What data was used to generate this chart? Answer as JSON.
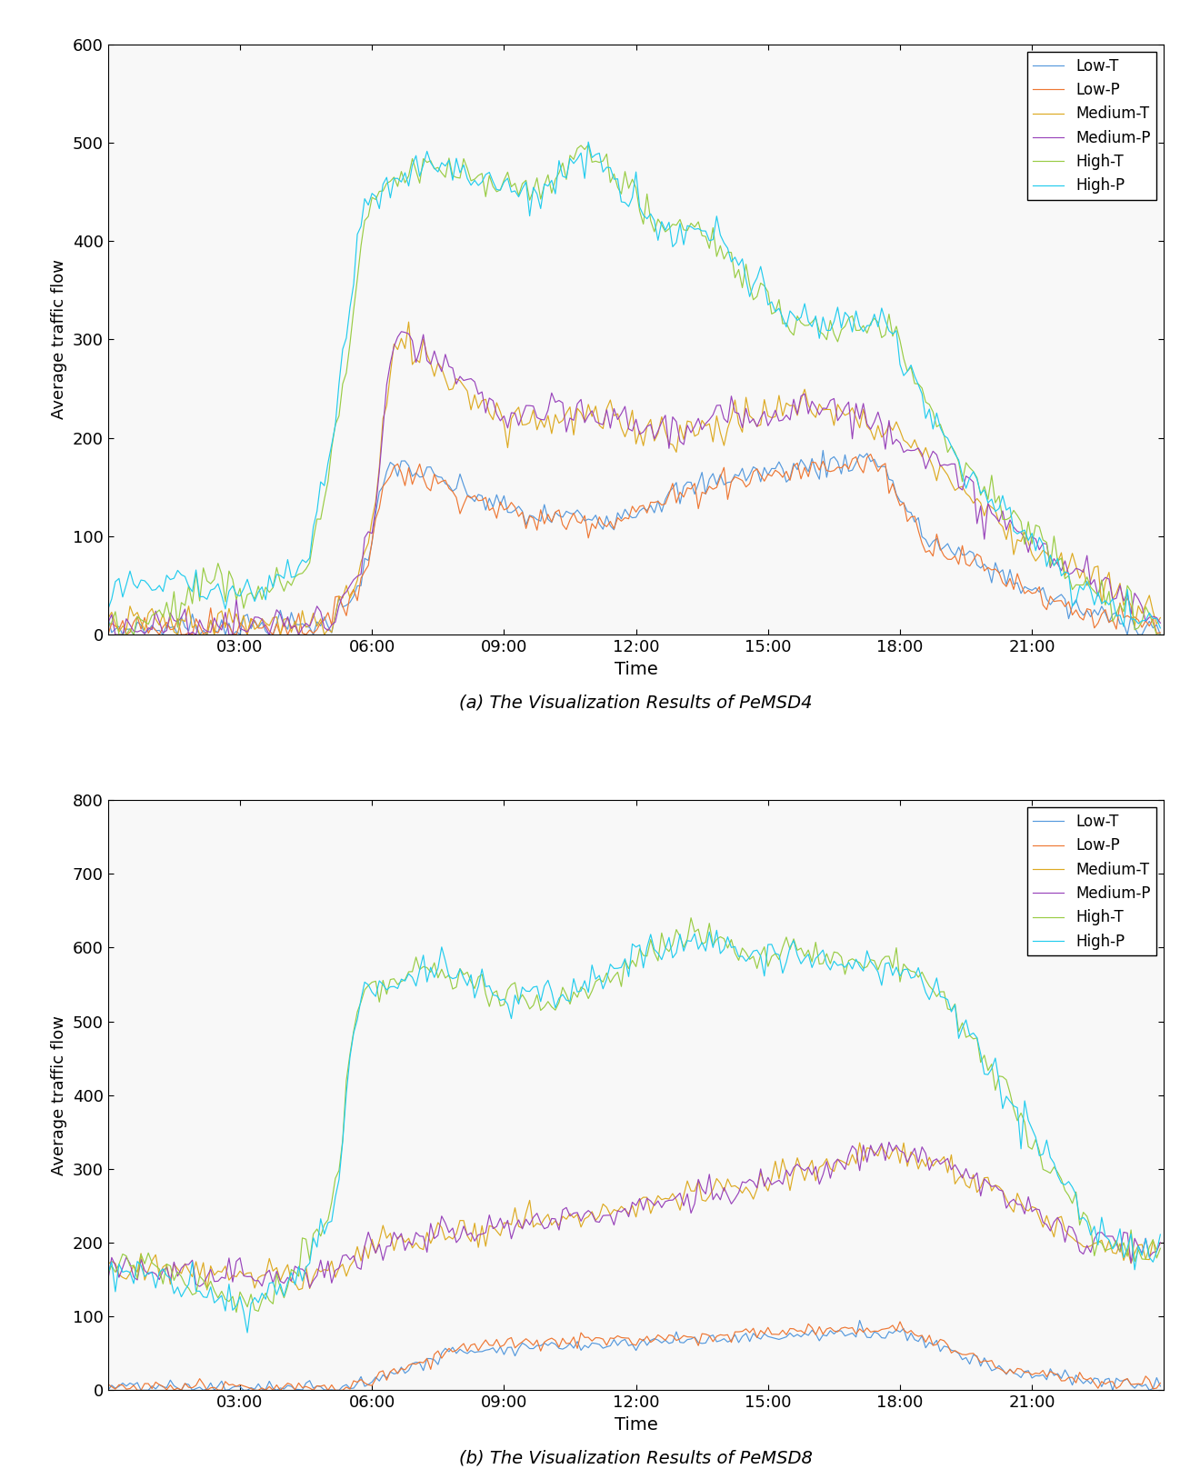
{
  "title_a": "(a) The Visualization Results of PeMSD4",
  "title_b": "(b) The Visualization Results of PeMSD8",
  "ylabel": "Average traffic flow",
  "xlabel": "Time",
  "legend_labels": [
    "Low-T",
    "Low-P",
    "Medium-T",
    "Medium-P",
    "High-T",
    "High-P"
  ],
  "colors": [
    "#5599dd",
    "#ee7733",
    "#ddaa22",
    "#9944bb",
    "#99cc44",
    "#22ccee"
  ],
  "ylim_a": [
    0,
    600
  ],
  "ylim_b": [
    0,
    800
  ],
  "yticks_a": [
    0,
    100,
    200,
    300,
    400,
    500,
    600
  ],
  "yticks_b": [
    0,
    100,
    200,
    300,
    400,
    500,
    600,
    700,
    800
  ],
  "xtick_labels": [
    "03:00",
    "06:00",
    "09:00",
    "12:00",
    "15:00",
    "18:00",
    "21:00"
  ],
  "n_points": 288,
  "figsize": [
    13.2,
    16.27
  ],
  "dpi": 100
}
